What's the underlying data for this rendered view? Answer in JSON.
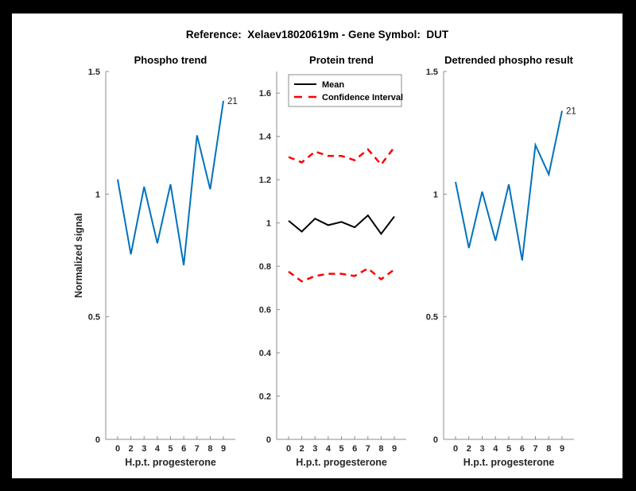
{
  "figure": {
    "title": "Reference:  Xelaev18020619m - Gene Symbol:  DUT",
    "background_color": "#000000",
    "canvas_color": "#ffffff"
  },
  "colors": {
    "signal_blue": "#0072BD",
    "confidence_red": "#FF0000",
    "mean_black": "#000000",
    "axis_gray": "#8c8c8c",
    "label_gray": "#262626"
  },
  "chart_data": [
    {
      "type": "line",
      "title": "Phospho trend",
      "xlabel": "H.p.t. progesterone",
      "ylabel": "Normalized signal",
      "x_tick_labels": [
        "0",
        "2",
        "3",
        "4",
        "5",
        "6",
        "7",
        "8",
        "9"
      ],
      "y_tick_labels": [
        "0",
        "0.5",
        "1",
        "1.5"
      ],
      "ylim": [
        0,
        1.5
      ],
      "grid": false,
      "series": [
        {
          "color": "#0072BD",
          "style": "solid",
          "values": [
            1.06,
            0.755,
            1.03,
            0.8,
            1.04,
            0.71,
            1.24,
            1.02,
            1.38
          ]
        }
      ],
      "end_label": "21",
      "legend": null
    },
    {
      "type": "line",
      "title": "Protein trend",
      "xlabel": "H.p.t. progesterone",
      "ylabel": null,
      "x_tick_labels": [
        "0",
        "2",
        "3",
        "4",
        "5",
        "6",
        "7",
        "8",
        "9"
      ],
      "y_tick_labels": [
        "0",
        "0.2",
        "0.4",
        "0.6",
        "0.8",
        "1",
        "1.2",
        "1.4",
        "1.6"
      ],
      "ylim": [
        0,
        1.7
      ],
      "grid": false,
      "series": [
        {
          "name": "Mean",
          "color": "#000000",
          "style": "solid",
          "values": [
            1.01,
            0.96,
            1.02,
            0.99,
            1.005,
            0.98,
            1.035,
            0.95,
            1.03
          ]
        },
        {
          "name": "Confidence Interval",
          "color": "#FF0000",
          "style": "dashed",
          "values": [
            1.305,
            1.28,
            1.33,
            1.31,
            1.31,
            1.29,
            1.34,
            1.27,
            1.35
          ]
        },
        {
          "name": "Confidence Interval",
          "color": "#FF0000",
          "style": "dashed",
          "values": [
            0.775,
            0.73,
            0.755,
            0.765,
            0.765,
            0.755,
            0.79,
            0.74,
            0.785
          ]
        }
      ],
      "end_label": null,
      "legend": {
        "position": "top-left",
        "entries": [
          {
            "label": "Mean",
            "color": "#000000",
            "style": "solid"
          },
          {
            "label": "Confidence Interval",
            "color": "#FF0000",
            "style": "dashed"
          }
        ]
      }
    },
    {
      "type": "line",
      "title": "Detrended phospho result",
      "xlabel": "H.p.t. progesterone",
      "ylabel": null,
      "x_tick_labels": [
        "0",
        "2",
        "3",
        "4",
        "5",
        "6",
        "7",
        "8",
        "9"
      ],
      "y_tick_labels": [
        "0",
        "0.5",
        "1",
        "1.5"
      ],
      "ylim": [
        0,
        1.5
      ],
      "grid": false,
      "series": [
        {
          "color": "#0072BD",
          "style": "solid",
          "values": [
            1.05,
            0.78,
            1.01,
            0.81,
            1.04,
            0.73,
            1.2,
            1.08,
            1.34
          ]
        }
      ],
      "end_label": "21",
      "legend": null
    }
  ]
}
